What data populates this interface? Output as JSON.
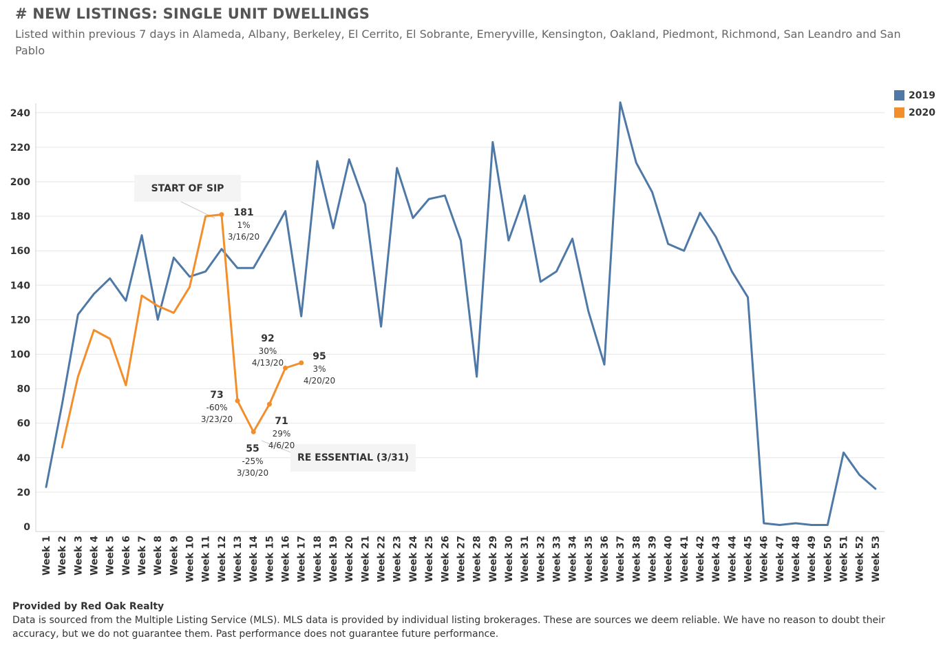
{
  "header": {
    "title": "# NEW LISTINGS: SINGLE UNIT DWELLINGS",
    "subtitle": "Listed within previous 7 days in Alameda, Albany, Berkeley, El Cerrito, El Sobrante, Emeryville, Kensington, Oakland, Piedmont, Richmond, San Leandro and San Pablo"
  },
  "legend": [
    {
      "label": "2019",
      "color": "#4e79a7"
    },
    {
      "label": "2020",
      "color": "#f28e2b"
    }
  ],
  "callouts": {
    "sip": "START OF SIP",
    "re": "RE ESSENTIAL (3/31)"
  },
  "point_labels": [
    {
      "value": "181",
      "pct": "1%",
      "date": "3/16/20"
    },
    {
      "value": "73",
      "pct": "-60%",
      "date": "3/23/20"
    },
    {
      "value": "55",
      "pct": "-25%",
      "date": "3/30/20"
    },
    {
      "value": "71",
      "pct": "29%",
      "date": "4/6/20"
    },
    {
      "value": "92",
      "pct": "30%",
      "date": "4/13/20"
    },
    {
      "value": "95",
      "pct": "3%",
      "date": "4/20/20"
    }
  ],
  "footer": {
    "title": "Provided by Red Oak Realty",
    "text": "Data is sourced from the Multiple Listing Service (MLS). MLS data is provided by individual listing brokerages. These are sources we deem reliable. We have no reason to doubt their accuracy, but we do not guarantee them. Past performance does not guarantee future performance."
  },
  "chart_data": {
    "type": "line",
    "title": "# NEW LISTINGS: SINGLE UNIT DWELLINGS",
    "xlabel": "",
    "ylabel": "",
    "ylim": [
      0,
      250
    ],
    "yticks": [
      0,
      20,
      40,
      60,
      80,
      100,
      120,
      140,
      160,
      180,
      200,
      220,
      240
    ],
    "grid": true,
    "legend_position": "top-right",
    "categories": [
      "Week 1",
      "Week 2",
      "Week 3",
      "Week 4",
      "Week 5",
      "Week 6",
      "Week 7",
      "Week 8",
      "Week 9",
      "Week 10",
      "Week 11",
      "Week 12",
      "Week 13",
      "Week 14",
      "Week 15",
      "Week 16",
      "Week 17",
      "Week 18",
      "Week 19",
      "Week 20",
      "Week 21",
      "Week 22",
      "Week 23",
      "Week 24",
      "Week 25",
      "Week 26",
      "Week 27",
      "Week 28",
      "Week 29",
      "Week 30",
      "Week 31",
      "Week 32",
      "Week 33",
      "Week 34",
      "Week 35",
      "Week 36",
      "Week 37",
      "Week 38",
      "Week 39",
      "Week 40",
      "Week 41",
      "Week 42",
      "Week 43",
      "Week 44",
      "Week 45",
      "Week 46",
      "Week 47",
      "Week 48",
      "Week 49",
      "Week 50",
      "Week 51",
      "Week 52",
      "Week 53"
    ],
    "series": [
      {
        "name": "2019",
        "color": "#4e79a7",
        "values": [
          23,
          71,
          123,
          135,
          144,
          131,
          169,
          120,
          156,
          145,
          148,
          161,
          150,
          150,
          166,
          183,
          122,
          212,
          173,
          213,
          187,
          116,
          208,
          179,
          190,
          192,
          166,
          87,
          223,
          166,
          192,
          142,
          148,
          167,
          125,
          94,
          246,
          211,
          194,
          164,
          160,
          182,
          168,
          148,
          133,
          2,
          1,
          2,
          1,
          1,
          43,
          30,
          22
        ]
      },
      {
        "name": "2020",
        "color": "#f28e2b",
        "values": [
          null,
          46,
          87,
          114,
          109,
          82,
          134,
          128,
          124,
          139,
          180,
          181,
          73,
          55,
          71,
          92,
          95,
          null,
          null,
          null,
          null,
          null,
          null,
          null,
          null,
          null,
          null,
          null,
          null,
          null,
          null,
          null,
          null,
          null,
          null,
          null,
          null,
          null,
          null,
          null,
          null,
          null,
          null,
          null,
          null,
          null,
          null,
          null,
          null,
          null,
          null,
          null,
          null
        ]
      }
    ]
  }
}
